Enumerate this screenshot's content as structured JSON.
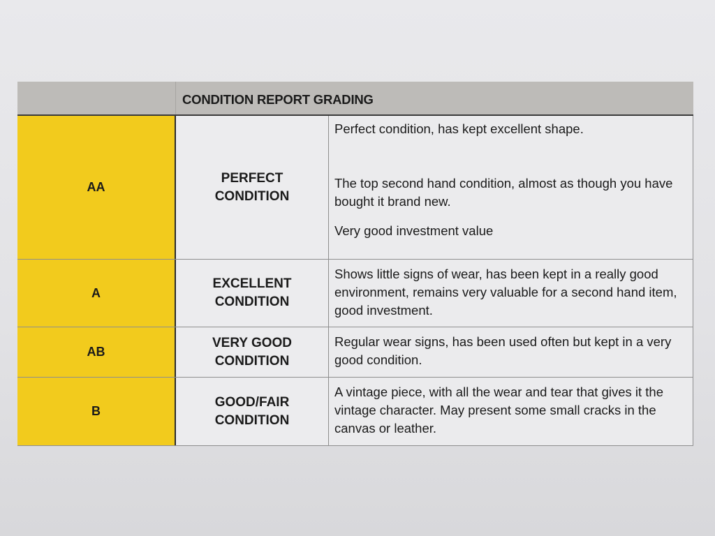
{
  "header": {
    "title": "CONDITION REPORT GRADING"
  },
  "colors": {
    "grade_fill": "#f2cb1d",
    "header_fill": "#bdbbb8"
  },
  "rows": [
    {
      "grade": "AA",
      "condition": [
        "PERFECT",
        "CONDITION"
      ],
      "description": [
        "Perfect condition, has kept excellent shape.",
        "The top second hand condition, almost as though you have bought it brand new.",
        "Very good investment value"
      ]
    },
    {
      "grade": "A",
      "condition": [
        "EXCELLENT",
        "CONDITION"
      ],
      "description": [
        "Shows little signs of wear, has been kept in a really good environment, remains very valuable for a second hand item, good investment."
      ]
    },
    {
      "grade": "AB",
      "condition": [
        "VERY GOOD",
        "CONDITION"
      ],
      "description": [
        "Regular wear signs, has been used often but kept in a very good condition."
      ]
    },
    {
      "grade": "B",
      "condition": [
        "GOOD/FAIR",
        "CONDITION"
      ],
      "description": [
        "A vintage piece, with all the wear and tear that gives it the vintage character. May present some small cracks in the canvas or leather."
      ]
    }
  ]
}
